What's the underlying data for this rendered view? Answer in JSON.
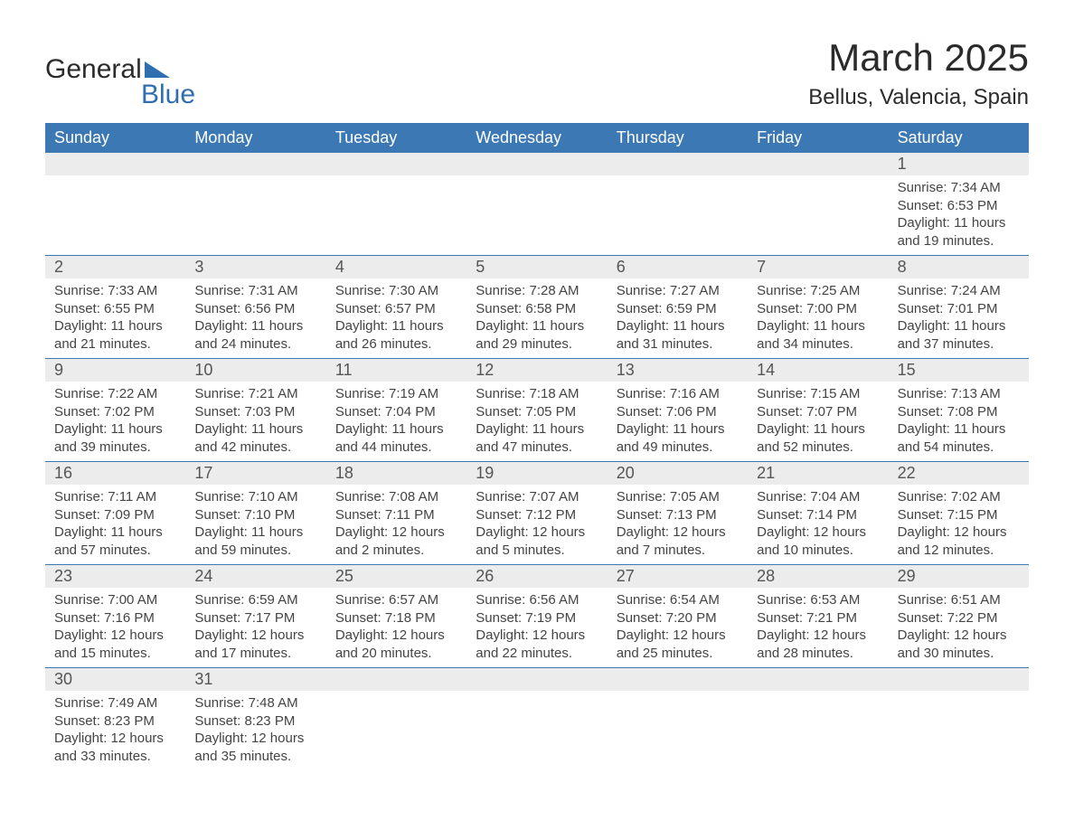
{
  "logo": {
    "word1": "General",
    "word2": "Blue"
  },
  "title": "March 2025",
  "location": "Bellus, Valencia, Spain",
  "colors": {
    "header_bg": "#3c78b4",
    "header_text": "#ffffff",
    "band_bg": "#ececec",
    "border": "#3c78b4",
    "text": "#444444",
    "logo_accent": "#2f6fb0"
  },
  "weekdays": [
    "Sunday",
    "Monday",
    "Tuesday",
    "Wednesday",
    "Thursday",
    "Friday",
    "Saturday"
  ],
  "weeks": [
    [
      null,
      null,
      null,
      null,
      null,
      null,
      {
        "n": "1",
        "sr": "7:34 AM",
        "ss": "6:53 PM",
        "dl": "11 hours and 19 minutes."
      }
    ],
    [
      {
        "n": "2",
        "sr": "7:33 AM",
        "ss": "6:55 PM",
        "dl": "11 hours and 21 minutes."
      },
      {
        "n": "3",
        "sr": "7:31 AM",
        "ss": "6:56 PM",
        "dl": "11 hours and 24 minutes."
      },
      {
        "n": "4",
        "sr": "7:30 AM",
        "ss": "6:57 PM",
        "dl": "11 hours and 26 minutes."
      },
      {
        "n": "5",
        "sr": "7:28 AM",
        "ss": "6:58 PM",
        "dl": "11 hours and 29 minutes."
      },
      {
        "n": "6",
        "sr": "7:27 AM",
        "ss": "6:59 PM",
        "dl": "11 hours and 31 minutes."
      },
      {
        "n": "7",
        "sr": "7:25 AM",
        "ss": "7:00 PM",
        "dl": "11 hours and 34 minutes."
      },
      {
        "n": "8",
        "sr": "7:24 AM",
        "ss": "7:01 PM",
        "dl": "11 hours and 37 minutes."
      }
    ],
    [
      {
        "n": "9",
        "sr": "7:22 AM",
        "ss": "7:02 PM",
        "dl": "11 hours and 39 minutes."
      },
      {
        "n": "10",
        "sr": "7:21 AM",
        "ss": "7:03 PM",
        "dl": "11 hours and 42 minutes."
      },
      {
        "n": "11",
        "sr": "7:19 AM",
        "ss": "7:04 PM",
        "dl": "11 hours and 44 minutes."
      },
      {
        "n": "12",
        "sr": "7:18 AM",
        "ss": "7:05 PM",
        "dl": "11 hours and 47 minutes."
      },
      {
        "n": "13",
        "sr": "7:16 AM",
        "ss": "7:06 PM",
        "dl": "11 hours and 49 minutes."
      },
      {
        "n": "14",
        "sr": "7:15 AM",
        "ss": "7:07 PM",
        "dl": "11 hours and 52 minutes."
      },
      {
        "n": "15",
        "sr": "7:13 AM",
        "ss": "7:08 PM",
        "dl": "11 hours and 54 minutes."
      }
    ],
    [
      {
        "n": "16",
        "sr": "7:11 AM",
        "ss": "7:09 PM",
        "dl": "11 hours and 57 minutes."
      },
      {
        "n": "17",
        "sr": "7:10 AM",
        "ss": "7:10 PM",
        "dl": "11 hours and 59 minutes."
      },
      {
        "n": "18",
        "sr": "7:08 AM",
        "ss": "7:11 PM",
        "dl": "12 hours and 2 minutes."
      },
      {
        "n": "19",
        "sr": "7:07 AM",
        "ss": "7:12 PM",
        "dl": "12 hours and 5 minutes."
      },
      {
        "n": "20",
        "sr": "7:05 AM",
        "ss": "7:13 PM",
        "dl": "12 hours and 7 minutes."
      },
      {
        "n": "21",
        "sr": "7:04 AM",
        "ss": "7:14 PM",
        "dl": "12 hours and 10 minutes."
      },
      {
        "n": "22",
        "sr": "7:02 AM",
        "ss": "7:15 PM",
        "dl": "12 hours and 12 minutes."
      }
    ],
    [
      {
        "n": "23",
        "sr": "7:00 AM",
        "ss": "7:16 PM",
        "dl": "12 hours and 15 minutes."
      },
      {
        "n": "24",
        "sr": "6:59 AM",
        "ss": "7:17 PM",
        "dl": "12 hours and 17 minutes."
      },
      {
        "n": "25",
        "sr": "6:57 AM",
        "ss": "7:18 PM",
        "dl": "12 hours and 20 minutes."
      },
      {
        "n": "26",
        "sr": "6:56 AM",
        "ss": "7:19 PM",
        "dl": "12 hours and 22 minutes."
      },
      {
        "n": "27",
        "sr": "6:54 AM",
        "ss": "7:20 PM",
        "dl": "12 hours and 25 minutes."
      },
      {
        "n": "28",
        "sr": "6:53 AM",
        "ss": "7:21 PM",
        "dl": "12 hours and 28 minutes."
      },
      {
        "n": "29",
        "sr": "6:51 AM",
        "ss": "7:22 PM",
        "dl": "12 hours and 30 minutes."
      }
    ],
    [
      {
        "n": "30",
        "sr": "7:49 AM",
        "ss": "8:23 PM",
        "dl": "12 hours and 33 minutes."
      },
      {
        "n": "31",
        "sr": "7:48 AM",
        "ss": "8:23 PM",
        "dl": "12 hours and 35 minutes."
      },
      null,
      null,
      null,
      null,
      null
    ]
  ],
  "labels": {
    "sunrise": "Sunrise: ",
    "sunset": "Sunset: ",
    "daylight": "Daylight: "
  }
}
